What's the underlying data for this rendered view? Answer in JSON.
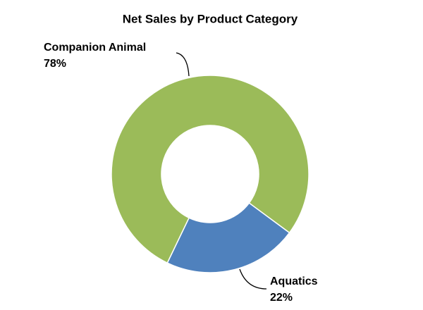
{
  "chart_data": {
    "type": "donut",
    "title": "Net Sales by Product Category",
    "categories": [
      "Aquatics",
      "Companion Animal"
    ],
    "values": [
      22,
      78
    ],
    "value_labels": [
      "22%",
      "78%"
    ],
    "colors": [
      "#4f81bd",
      "#9bbb59"
    ]
  }
}
